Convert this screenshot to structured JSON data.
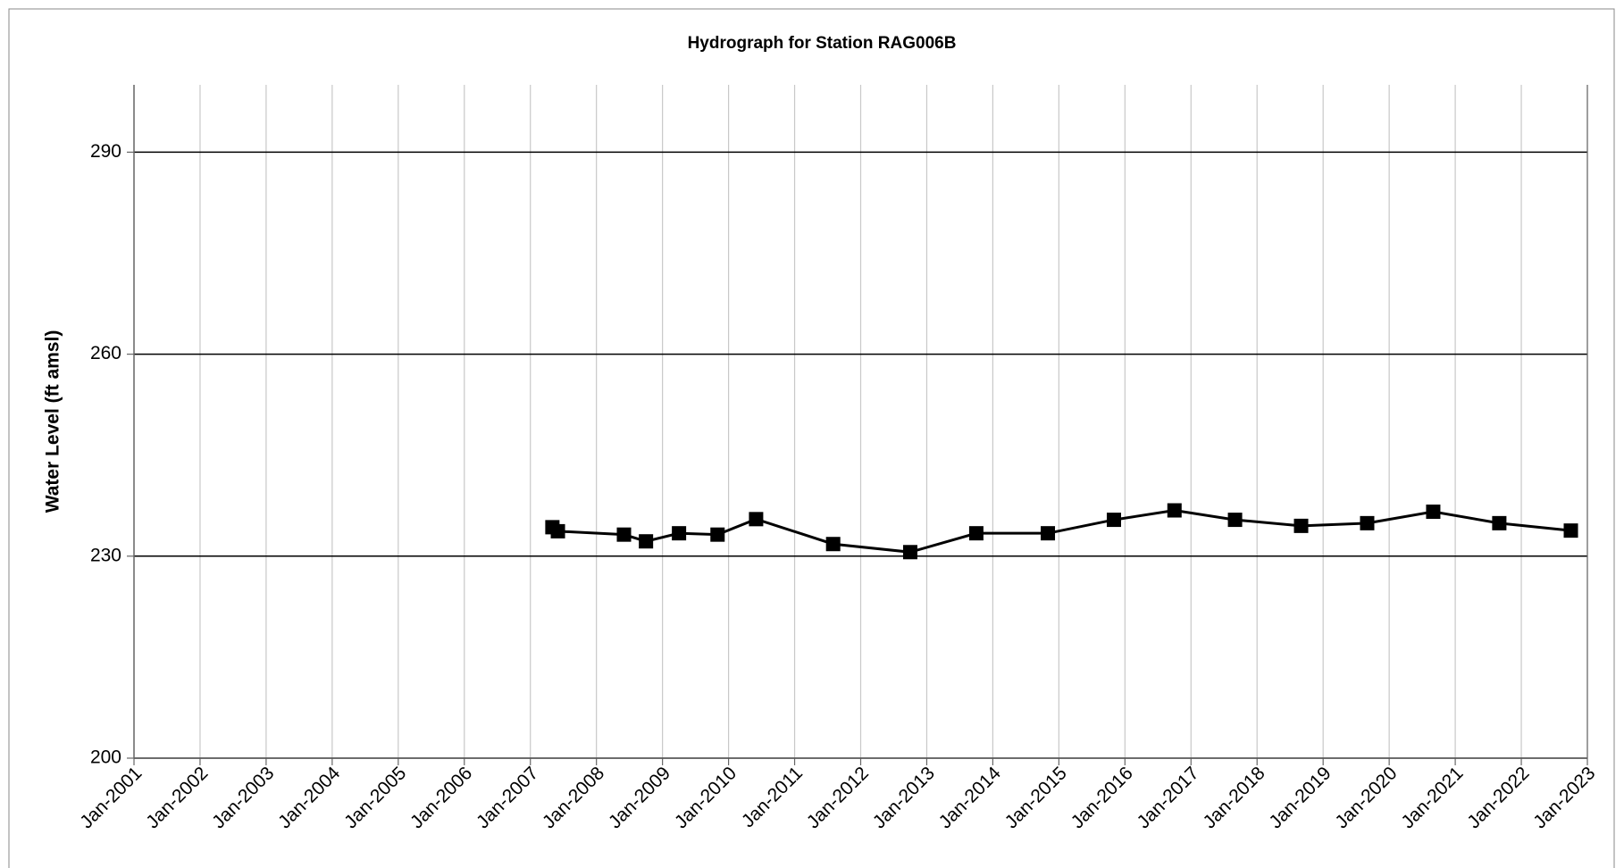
{
  "chart_data": {
    "type": "line",
    "title": "Hydrograph for Station RAG006B",
    "y_label": "Water Level (ft amsl)",
    "x": [
      "May-2007",
      "Jun-2007",
      "Jun-2008",
      "Oct-2008",
      "Apr-2009",
      "Nov-2009",
      "Jun-2010",
      "Aug-2011",
      "Oct-2012",
      "Oct-2013",
      "Nov-2014",
      "Nov-2015",
      "Oct-2016",
      "Sep-2017",
      "Sep-2018",
      "Sep-2019",
      "Sep-2020",
      "Sep-2021",
      "Oct-2022"
    ],
    "series": [
      {
        "name": "RAG006B",
        "color": "#000000",
        "values": [
          234.3,
          233.7,
          233.2,
          232.2,
          233.4,
          233.2,
          235.5,
          231.8,
          230.6,
          233.4,
          233.4,
          235.4,
          236.8,
          235.4,
          234.5,
          234.9,
          236.6,
          234.9,
          233.8
        ]
      }
    ],
    "xlim": [
      "Jan-2001",
      "Jan-2023"
    ],
    "xticks": [
      "Jan-2001",
      "Jan-2002",
      "Jan-2003",
      "Jan-2004",
      "Jan-2005",
      "Jan-2006",
      "Jan-2007",
      "Jan-2008",
      "Jan-2009",
      "Jan-2010",
      "Jan-2011",
      "Jan-2012",
      "Jan-2013",
      "Jan-2014",
      "Jan-2015",
      "Jan-2016",
      "Jan-2017",
      "Jan-2018",
      "Jan-2019",
      "Jan-2020",
      "Jan-2021",
      "Jan-2022",
      "Jan-2023"
    ],
    "ylim": [
      200,
      300
    ],
    "yticks": [
      200,
      230,
      260,
      290
    ],
    "grid": true
  }
}
